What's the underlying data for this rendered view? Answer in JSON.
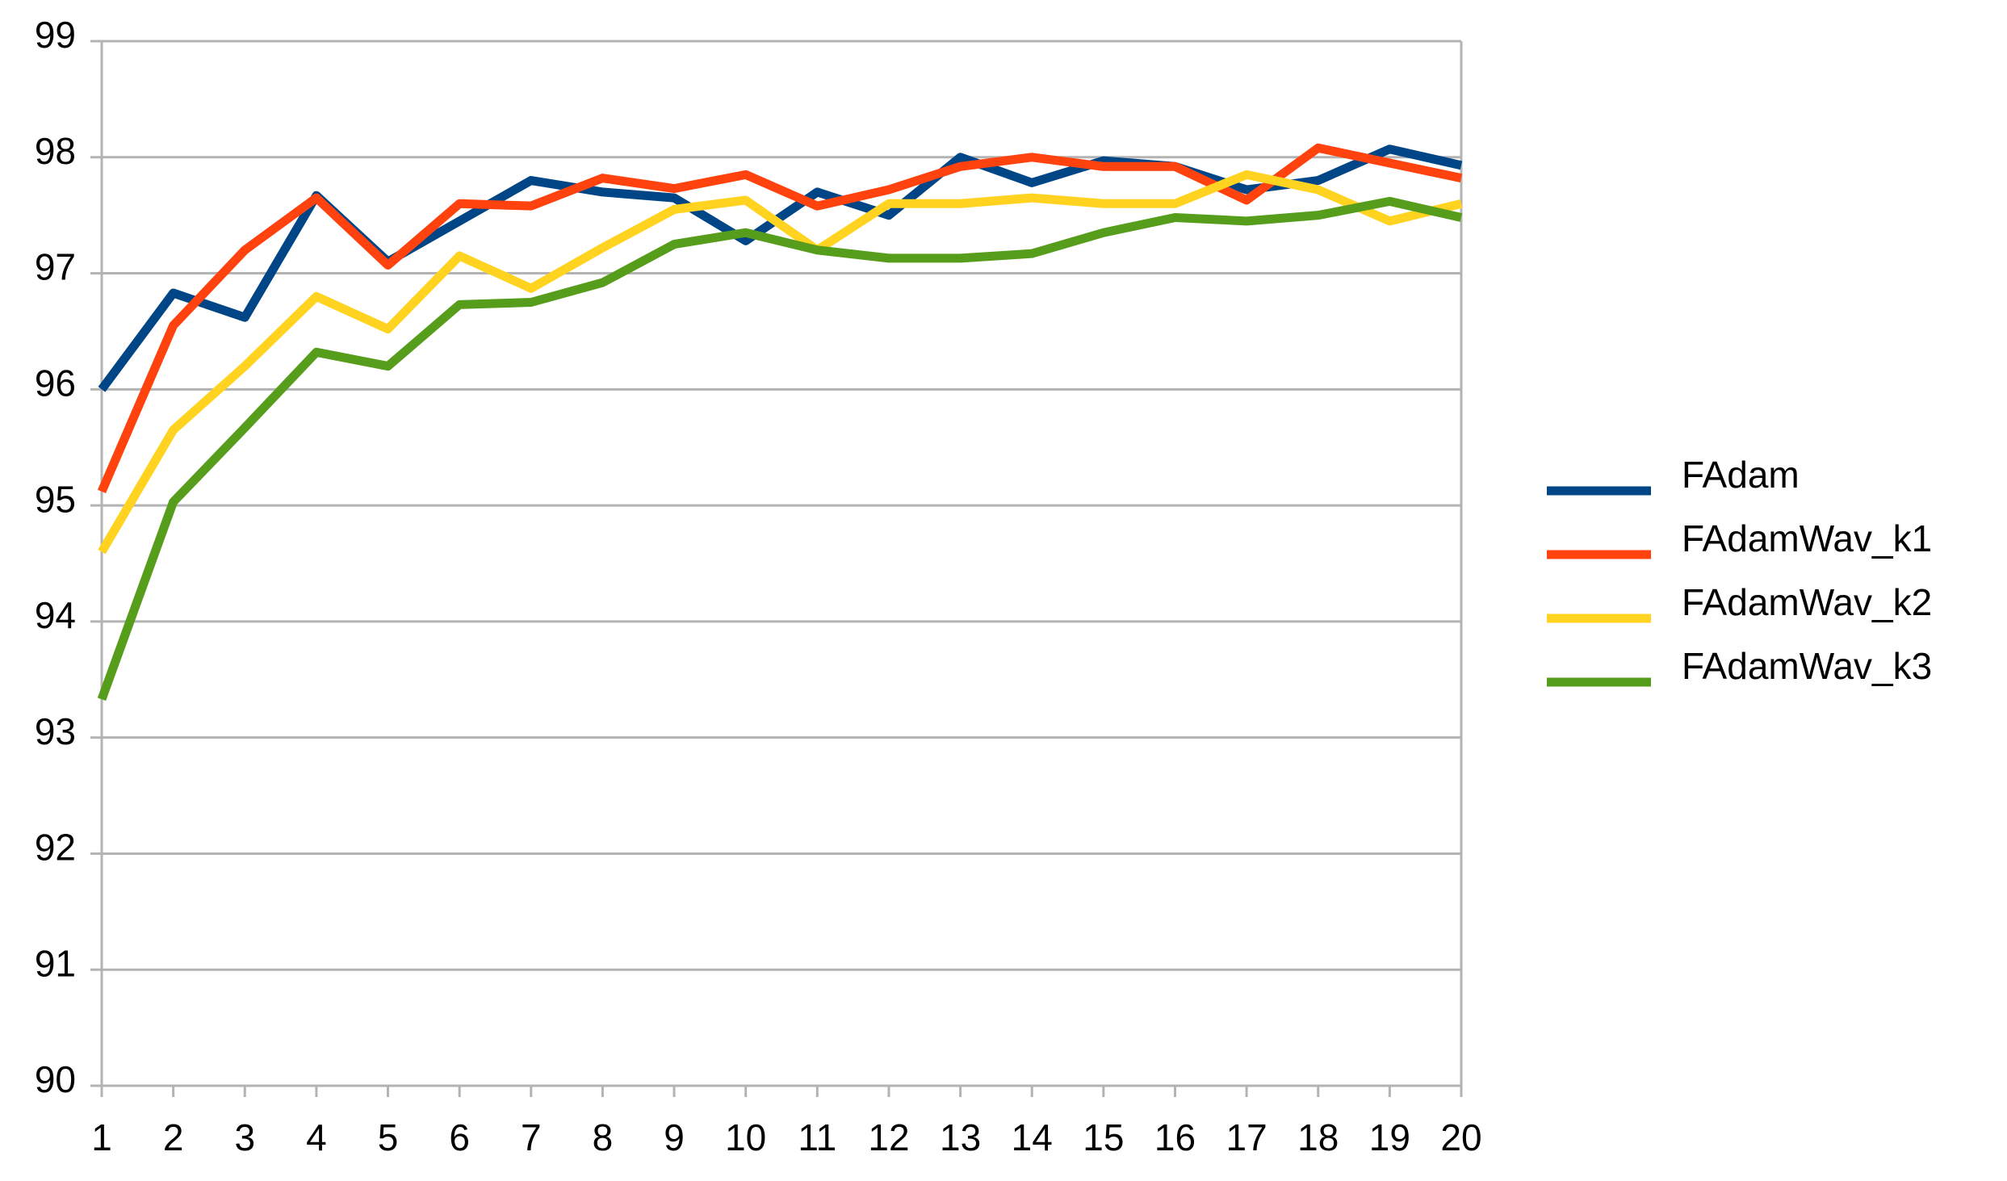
{
  "chart_data": {
    "type": "line",
    "x": [
      1,
      2,
      3,
      4,
      5,
      6,
      7,
      8,
      9,
      10,
      11,
      12,
      13,
      14,
      15,
      16,
      17,
      18,
      19,
      20
    ],
    "series": [
      {
        "name": "FAdam",
        "color": "#004586",
        "values": [
          96.0,
          96.83,
          96.62,
          97.67,
          97.1,
          97.45,
          97.8,
          97.7,
          97.65,
          97.28,
          97.7,
          97.5,
          98.0,
          97.78,
          97.97,
          97.92,
          97.72,
          97.8,
          98.07,
          97.93
        ]
      },
      {
        "name": "FAdamWav_k1",
        "color": "#ff420e",
        "values": [
          95.12,
          96.55,
          97.2,
          97.65,
          97.07,
          97.6,
          97.58,
          97.82,
          97.73,
          97.85,
          97.58,
          97.72,
          97.92,
          98.0,
          97.92,
          97.92,
          97.63,
          98.08,
          97.95,
          97.82
        ]
      },
      {
        "name": "FAdamWav_k2",
        "color": "#ffd320",
        "values": [
          94.6,
          95.65,
          96.2,
          96.8,
          96.52,
          97.15,
          96.87,
          97.22,
          97.55,
          97.63,
          97.2,
          97.6,
          97.6,
          97.65,
          97.6,
          97.6,
          97.85,
          97.72,
          97.45,
          97.6
        ]
      },
      {
        "name": "FAdamWav_k3",
        "color": "#579d1c",
        "values": [
          93.33,
          95.03,
          95.67,
          96.32,
          96.2,
          96.73,
          96.75,
          96.92,
          97.25,
          97.35,
          97.2,
          97.13,
          97.13,
          97.17,
          97.35,
          97.48,
          97.45,
          97.5,
          97.62,
          97.48
        ]
      }
    ],
    "xlim": [
      1,
      20
    ],
    "xticks": [
      1,
      2,
      3,
      4,
      5,
      6,
      7,
      8,
      9,
      10,
      11,
      12,
      13,
      14,
      15,
      16,
      17,
      18,
      19,
      20
    ],
    "ylim": [
      90,
      99
    ],
    "yticks": [
      90,
      91,
      92,
      93,
      94,
      95,
      96,
      97,
      98,
      99
    ],
    "grid": true,
    "legend": "right"
  }
}
